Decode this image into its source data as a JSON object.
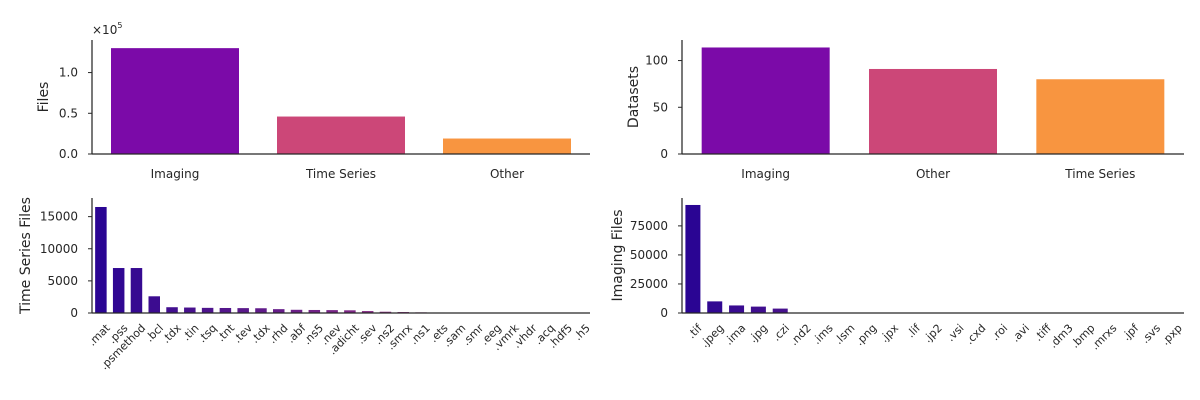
{
  "chart_data": [
    {
      "type": "bar",
      "ylabel": "Files",
      "xlabel": "",
      "title": "",
      "ylim": [
        0,
        140000
      ],
      "yticks": [
        0,
        50000,
        100000
      ],
      "ytick_labels": [
        "0.0",
        "0.5",
        "1.0"
      ],
      "offset_label": "×10",
      "offset_exponent": "5",
      "categories": [
        "Imaging",
        "Time Series",
        "Other"
      ],
      "values": [
        130000,
        46000,
        19000
      ],
      "colors": [
        "#7b0aa8",
        "#cc4778",
        "#f89540"
      ],
      "grid": false
    },
    {
      "type": "bar",
      "ylabel": "Datasets",
      "xlabel": "",
      "title": "",
      "ylim": [
        0,
        122
      ],
      "yticks": [
        0,
        50,
        100
      ],
      "ytick_labels": [
        "0",
        "50",
        "100"
      ],
      "categories": [
        "Imaging",
        "Other",
        "Time Series"
      ],
      "values": [
        114,
        91,
        80
      ],
      "colors": [
        "#7b0aa8",
        "#cc4778",
        "#f89540"
      ],
      "grid": false
    },
    {
      "type": "bar",
      "ylabel": "Time Series Files",
      "xlabel": "",
      "title": "",
      "ylim": [
        0,
        17900
      ],
      "yticks": [
        0,
        5000,
        10000,
        15000
      ],
      "ytick_labels": [
        "0",
        "5000",
        "10000",
        "15000"
      ],
      "categories": [
        ".mat",
        ".pss",
        ".psmethod",
        ".bcl",
        ".tdx",
        ".tin",
        ".tsq",
        ".tnt",
        ".tev",
        ".tdx",
        ".rhd",
        ".abf",
        ".ns5",
        ".nev",
        ".adicht",
        ".sev",
        ".ns2",
        ".smrx",
        ".ns1",
        ".ets",
        ".sam",
        ".smr",
        ".eeg",
        ".vmrk",
        ".vhdr",
        ".acq",
        ".hdf5",
        ".h5"
      ],
      "values": [
        16500,
        7000,
        7000,
        2600,
        900,
        850,
        800,
        780,
        760,
        740,
        600,
        500,
        470,
        450,
        420,
        300,
        200,
        150,
        100,
        80,
        60,
        50,
        40,
        30,
        30,
        20,
        15,
        10
      ],
      "color_start": "#2a0593",
      "color_end": "#cc4778",
      "grid": false
    },
    {
      "type": "bar",
      "ylabel": "Imaging Files",
      "xlabel": "",
      "title": "",
      "ylim": [
        0,
        99000
      ],
      "yticks": [
        0,
        25000,
        50000,
        75000
      ],
      "ytick_labels": [
        "0",
        "25000",
        "50000",
        "75000"
      ],
      "categories": [
        ".tif",
        ".jpeg",
        ".ima",
        ".jpg",
        ".czi",
        ".nd2",
        ".ims",
        ".lsm",
        ".png",
        ".jpx",
        ".lif",
        ".jp2",
        ".vsi",
        ".cxd",
        ".roi",
        ".avi",
        ".tiff",
        ".dm3",
        ".bmp",
        ".mrxs",
        ".jpf",
        ".svs",
        ".pxp"
      ],
      "values": [
        93000,
        10000,
        6500,
        5500,
        3800,
        300,
        250,
        200,
        150,
        120,
        100,
        90,
        80,
        70,
        60,
        50,
        40,
        30,
        25,
        20,
        15,
        10,
        5
      ],
      "color_start": "#2a0593",
      "color_end": "#cc4778",
      "grid": false
    }
  ]
}
